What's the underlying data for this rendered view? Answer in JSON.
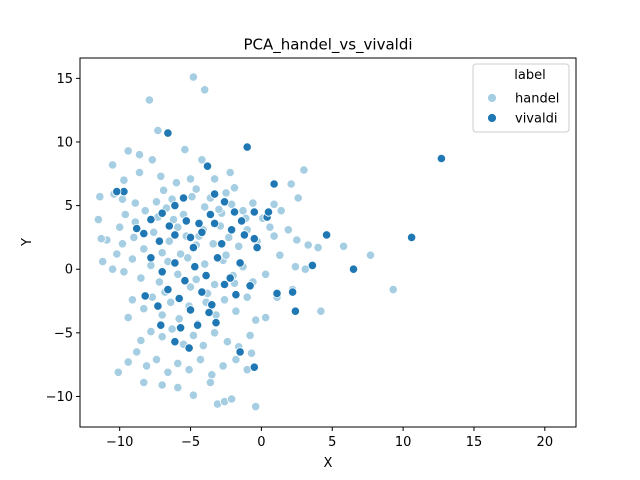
{
  "chart_data": {
    "type": "scatter",
    "title": "PCA_handel_vs_vivaldi",
    "xlabel": "X",
    "ylabel": "Y",
    "xlim": [
      -12.8,
      22.2
    ],
    "ylim": [
      -12.4,
      16.6
    ],
    "xticks": [
      -10,
      -5,
      0,
      5,
      10,
      15,
      20
    ],
    "yticks": [
      -10,
      -5,
      0,
      5,
      10,
      15
    ],
    "grid": false,
    "legend": {
      "title": "label",
      "placement": "top-right"
    },
    "series": [
      {
        "name": "handel",
        "color": "#a6cee3",
        "points": [
          [
            -4.8,
            15.1
          ],
          [
            -4.0,
            14.1
          ],
          [
            -7.9,
            13.3
          ],
          [
            -7.3,
            10.9
          ],
          [
            -9.4,
            9.3
          ],
          [
            -8.6,
            9.0
          ],
          [
            -5.4,
            9.4
          ],
          [
            -4.2,
            8.6
          ],
          [
            -10.5,
            8.2
          ],
          [
            -9.7,
            7.0
          ],
          [
            -8.6,
            7.6
          ],
          [
            -7.7,
            8.6
          ],
          [
            -7.1,
            7.3
          ],
          [
            -6.0,
            6.8
          ],
          [
            -5.0,
            7.1
          ],
          [
            -3.3,
            7.1
          ],
          [
            -2.2,
            7.6
          ],
          [
            -1.9,
            6.4
          ],
          [
            -9.8,
            5.5
          ],
          [
            -10.4,
            5.9
          ],
          [
            -11.4,
            5.7
          ],
          [
            -9.6,
            4.3
          ],
          [
            -8.9,
            3.7
          ],
          [
            -8.2,
            4.6
          ],
          [
            -7.4,
            5.3
          ],
          [
            -6.7,
            4.8
          ],
          [
            -6.3,
            5.5
          ],
          [
            -5.5,
            4.3
          ],
          [
            -4.9,
            5.7
          ],
          [
            -4.0,
            4.9
          ],
          [
            -3.6,
            5.6
          ],
          [
            -2.8,
            4.4
          ],
          [
            -2.1,
            5.1
          ],
          [
            -1.3,
            4.6
          ],
          [
            -0.6,
            5.2
          ],
          [
            0.1,
            4.0
          ],
          [
            0.9,
            5.1
          ],
          [
            1.4,
            4.6
          ],
          [
            2.1,
            6.7
          ],
          [
            2.6,
            5.6
          ],
          [
            3.0,
            7.8
          ],
          [
            -11.5,
            3.9
          ],
          [
            -10.9,
            2.3
          ],
          [
            -9.8,
            2.0
          ],
          [
            -9.0,
            2.5
          ],
          [
            -8.3,
            1.6
          ],
          [
            -7.6,
            2.9
          ],
          [
            -7.0,
            1.3
          ],
          [
            -6.5,
            2.2
          ],
          [
            -5.9,
            3.3
          ],
          [
            -5.3,
            2.6
          ],
          [
            -4.6,
            1.9
          ],
          [
            -4.1,
            3.1
          ],
          [
            -3.4,
            2.0
          ],
          [
            -2.9,
            3.4
          ],
          [
            -2.3,
            2.5
          ],
          [
            -1.6,
            1.8
          ],
          [
            -1.0,
            3.1
          ],
          [
            -0.3,
            2.2
          ],
          [
            0.9,
            2.6
          ],
          [
            2.5,
            2.3
          ],
          [
            3.3,
            1.9
          ],
          [
            4.0,
            1.7
          ],
          [
            5.8,
            1.8
          ],
          [
            7.7,
            1.1
          ],
          [
            -11.2,
            0.6
          ],
          [
            -10.5,
            0.0
          ],
          [
            -9.7,
            -0.2
          ],
          [
            -9.1,
            0.8
          ],
          [
            -8.5,
            -0.7
          ],
          [
            -7.8,
            0.3
          ],
          [
            -7.2,
            -1.0
          ],
          [
            -6.6,
            0.6
          ],
          [
            -5.9,
            -0.4
          ],
          [
            -5.2,
            0.9
          ],
          [
            -4.6,
            -0.8
          ],
          [
            -4.0,
            0.4
          ],
          [
            -3.3,
            -1.2
          ],
          [
            -2.7,
            0.7
          ],
          [
            -2.0,
            -0.5
          ],
          [
            -1.3,
            0.2
          ],
          [
            -0.6,
            -1.0
          ],
          [
            0.3,
            -0.4
          ],
          [
            1.3,
            1.1
          ],
          [
            2.4,
            0.2
          ],
          [
            3.1,
            0.0
          ],
          [
            -9.1,
            -2.4
          ],
          [
            -8.3,
            -3.1
          ],
          [
            -7.7,
            -2.2
          ],
          [
            -7.0,
            -3.6
          ],
          [
            -6.4,
            -2.6
          ],
          [
            -5.8,
            -3.9
          ],
          [
            -5.1,
            -2.9
          ],
          [
            -4.5,
            -4.3
          ],
          [
            -3.9,
            -2.6
          ],
          [
            -3.2,
            -3.6
          ],
          [
            -2.6,
            -2.4
          ],
          [
            -1.8,
            -3.3
          ],
          [
            -1.0,
            -2.2
          ],
          [
            -0.4,
            -4.0
          ],
          [
            0.3,
            -3.8
          ],
          [
            1.1,
            -2.2
          ],
          [
            2.2,
            -1.6
          ],
          [
            4.2,
            -3.3
          ],
          [
            9.3,
            -1.6
          ],
          [
            -9.4,
            -3.8
          ],
          [
            -8.5,
            -5.6
          ],
          [
            -7.8,
            -4.9
          ],
          [
            -7.0,
            -5.3
          ],
          [
            -6.3,
            -4.7
          ],
          [
            -5.5,
            -5.9
          ],
          [
            -4.8,
            -5.2
          ],
          [
            -4.1,
            -6.0
          ],
          [
            -3.3,
            -5.0
          ],
          [
            -2.4,
            -5.7
          ],
          [
            -1.6,
            -6.1
          ],
          [
            -0.8,
            -5.2
          ],
          [
            -8.8,
            -6.5
          ],
          [
            -9.4,
            -7.3
          ],
          [
            -8.1,
            -7.6
          ],
          [
            -7.4,
            -7.1
          ],
          [
            -6.6,
            -8.1
          ],
          [
            -5.9,
            -7.4
          ],
          [
            -5.1,
            -7.9
          ],
          [
            -4.3,
            -7.1
          ],
          [
            -3.5,
            -8.3
          ],
          [
            -2.7,
            -7.6
          ],
          [
            -1.8,
            -7.1
          ],
          [
            -1.0,
            -7.9
          ],
          [
            -0.7,
            -6.6
          ],
          [
            -8.3,
            -8.9
          ],
          [
            -7.0,
            -9.1
          ],
          [
            -5.9,
            -9.3
          ],
          [
            -4.8,
            -9.9
          ],
          [
            -3.6,
            -8.9
          ],
          [
            -3.1,
            -10.6
          ],
          [
            -2.6,
            -10.4
          ],
          [
            -2.1,
            -10.2
          ],
          [
            -0.4,
            -10.8
          ],
          [
            -10.1,
            -8.1
          ],
          [
            -6.2,
            3.9
          ],
          [
            -5.7,
            1.2
          ],
          [
            -4.4,
            2.6
          ],
          [
            -3.8,
            -1.9
          ],
          [
            -2.5,
            1.1
          ],
          [
            -6.8,
            -1.8
          ],
          [
            -5.0,
            -1.4
          ],
          [
            -3.0,
            4.7
          ],
          [
            -1.9,
            -1.1
          ],
          [
            -7.3,
            4.1
          ],
          [
            -8.9,
            5.2
          ],
          [
            -10.0,
            3.3
          ],
          [
            -6.9,
            6.2
          ],
          [
            -4.6,
            6.3
          ],
          [
            -2.5,
            6.0
          ],
          [
            -1.1,
            4.0
          ],
          [
            0.6,
            3.3
          ],
          [
            1.9,
            3.1
          ],
          [
            -11.3,
            2.4
          ],
          [
            -10.2,
            1.2
          ]
        ]
      },
      {
        "name": "vivaldi",
        "color": "#1f78b4",
        "points": [
          [
            12.7,
            8.7
          ],
          [
            10.6,
            2.5
          ],
          [
            6.5,
            0.0
          ],
          [
            4.6,
            2.7
          ],
          [
            3.6,
            0.3
          ],
          [
            2.4,
            -3.3
          ],
          [
            2.2,
            -1.8
          ],
          [
            1.1,
            -1.9
          ],
          [
            -0.5,
            4.5
          ],
          [
            0.9,
            6.7
          ],
          [
            0.4,
            4.1
          ],
          [
            -1.0,
            9.6
          ],
          [
            -3.8,
            8.1
          ],
          [
            -6.6,
            10.7
          ],
          [
            -2.6,
            5.3
          ],
          [
            -3.6,
            4.3
          ],
          [
            -4.4,
            3.6
          ],
          [
            -5.3,
            3.8
          ],
          [
            -6.1,
            5.0
          ],
          [
            -7.0,
            4.4
          ],
          [
            -7.8,
            3.9
          ],
          [
            -8.8,
            3.2
          ],
          [
            -9.7,
            6.1
          ],
          [
            -10.2,
            6.1
          ],
          [
            -8.3,
            2.8
          ],
          [
            -7.2,
            2.2
          ],
          [
            -6.1,
            2.7
          ],
          [
            -5.0,
            2.5
          ],
          [
            -4.2,
            2.9
          ],
          [
            -3.3,
            3.6
          ],
          [
            -2.1,
            3.1
          ],
          [
            -1.4,
            3.8
          ],
          [
            -0.5,
            2.4
          ],
          [
            0.5,
            4.5
          ],
          [
            -7.8,
            0.9
          ],
          [
            -7.0,
            -0.2
          ],
          [
            -6.1,
            0.5
          ],
          [
            -5.4,
            -0.9
          ],
          [
            -4.7,
            0.2
          ],
          [
            -3.9,
            -0.5
          ],
          [
            -3.1,
            0.9
          ],
          [
            -2.2,
            -0.7
          ],
          [
            -1.5,
            0.5
          ],
          [
            -0.8,
            -1.3
          ],
          [
            -8.2,
            -2.1
          ],
          [
            -7.3,
            -2.9
          ],
          [
            -6.6,
            -1.6
          ],
          [
            -5.8,
            -2.3
          ],
          [
            -5.0,
            -3.2
          ],
          [
            -4.2,
            -1.8
          ],
          [
            -3.5,
            -2.8
          ],
          [
            -2.6,
            -1.2
          ],
          [
            -1.8,
            -2.0
          ],
          [
            -7.1,
            -4.4
          ],
          [
            -5.7,
            -4.6
          ],
          [
            -4.5,
            -4.4
          ],
          [
            -3.2,
            -4.2
          ],
          [
            -1.5,
            -6.5
          ],
          [
            -5.1,
            -6.2
          ],
          [
            -6.1,
            -5.7
          ],
          [
            -0.5,
            -7.7
          ],
          [
            -3.7,
            -3.4
          ],
          [
            -4.8,
            1.7
          ],
          [
            -2.8,
            2.0
          ],
          [
            -6.5,
            3.4
          ],
          [
            -3.3,
            5.9
          ],
          [
            -1.9,
            4.5
          ],
          [
            -1.2,
            2.7
          ],
          [
            -0.3,
            1.7
          ],
          [
            -5.5,
            5.6
          ]
        ]
      }
    ]
  }
}
